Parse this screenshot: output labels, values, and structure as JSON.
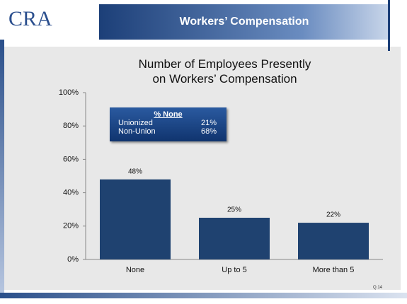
{
  "header": {
    "logo": "CRA",
    "title": "Workers’ Compensation"
  },
  "chart_data": {
    "type": "bar",
    "title": "Number of Employees Presently on Workers’ Compensation",
    "categories": [
      "None",
      "Up to 5",
      "More than 5"
    ],
    "values": [
      48,
      25,
      22
    ],
    "value_labels": [
      "48%",
      "25%",
      "22%"
    ],
    "color": "#1f4270",
    "ylim": [
      0,
      100
    ],
    "yticks": [
      {
        "value": 0,
        "label": "0%"
      },
      {
        "value": 20,
        "label": "20%"
      },
      {
        "value": 40,
        "label": "40%"
      },
      {
        "value": 60,
        "label": "60%"
      },
      {
        "value": 80,
        "label": "80%"
      },
      {
        "value": 100,
        "label": "100%"
      }
    ],
    "grid": false
  },
  "inset": {
    "title": "% None",
    "rows": [
      {
        "label": "Unionized",
        "value": "21%"
      },
      {
        "label": "Non-Union",
        "value": "68%"
      }
    ]
  },
  "footnote": "Q.14"
}
